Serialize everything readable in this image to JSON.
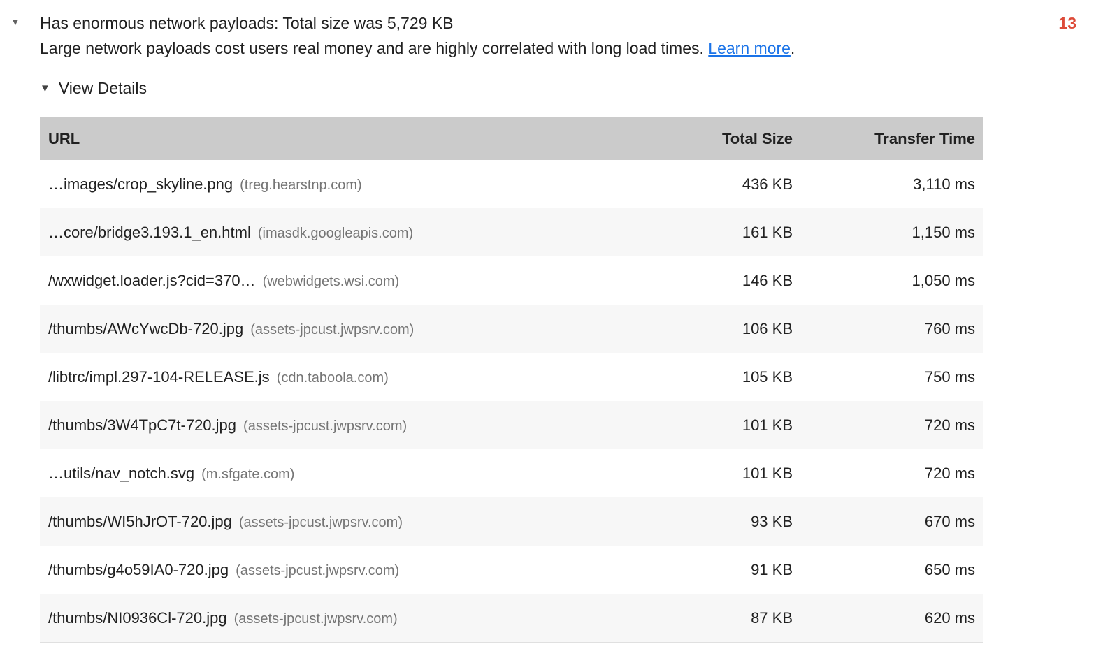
{
  "audit": {
    "expand_icon": "▼",
    "title": "Has enormous network payloads: Total size was 5,729 KB",
    "score": "13",
    "description": "Large network payloads cost users real money and are highly correlated with long load times. ",
    "learn_more_label": "Learn more",
    "description_suffix": ".",
    "view_details": {
      "icon": "▼",
      "label": "View Details"
    }
  },
  "table": {
    "headers": {
      "url": "URL",
      "size": "Total Size",
      "time": "Transfer Time"
    },
    "rows": [
      {
        "url": "…images/crop_skyline.png",
        "domain": "(treg.hearstnp.com)",
        "size": "436 KB",
        "time": "3,110 ms"
      },
      {
        "url": "…core/bridge3.193.1_en.html",
        "domain": "(imasdk.googleapis.com)",
        "size": "161 KB",
        "time": "1,150 ms"
      },
      {
        "url": "/wxwidget.loader.js?cid=370…",
        "domain": "(webwidgets.wsi.com)",
        "size": "146 KB",
        "time": "1,050 ms"
      },
      {
        "url": "/thumbs/AWcYwcDb-720.jpg",
        "domain": "(assets-jpcust.jwpsrv.com)",
        "size": "106 KB",
        "time": "760 ms"
      },
      {
        "url": "/libtrc/impl.297-104-RELEASE.js",
        "domain": "(cdn.taboola.com)",
        "size": "105 KB",
        "time": "750 ms"
      },
      {
        "url": "/thumbs/3W4TpC7t-720.jpg",
        "domain": "(assets-jpcust.jwpsrv.com)",
        "size": "101 KB",
        "time": "720 ms"
      },
      {
        "url": "…utils/nav_notch.svg",
        "domain": "(m.sfgate.com)",
        "size": "101 KB",
        "time": "720 ms"
      },
      {
        "url": "/thumbs/WI5hJrOT-720.jpg",
        "domain": "(assets-jpcust.jwpsrv.com)",
        "size": "93 KB",
        "time": "670 ms"
      },
      {
        "url": "/thumbs/g4o59IA0-720.jpg",
        "domain": "(assets-jpcust.jwpsrv.com)",
        "size": "91 KB",
        "time": "650 ms"
      },
      {
        "url": "/thumbs/NI0936Cl-720.jpg",
        "domain": "(assets-jpcust.jwpsrv.com)",
        "size": "87 KB",
        "time": "620 ms"
      }
    ]
  },
  "colors": {
    "score_red": "#dd4b39",
    "link_blue": "#1a73e8",
    "table_header_bg": "#cbcbcb",
    "row_alt_bg": "#f7f7f7",
    "domain_gray": "#757575"
  }
}
